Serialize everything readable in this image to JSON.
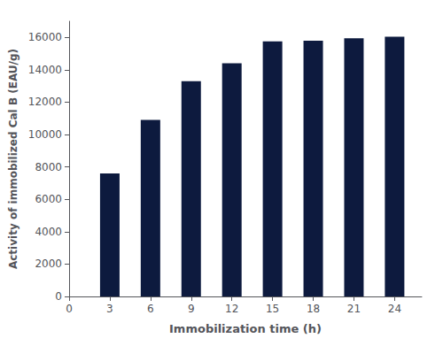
{
  "chart_data": {
    "type": "bar",
    "x": [
      3,
      6,
      9,
      12,
      15,
      18,
      21,
      24
    ],
    "values": [
      7600,
      10900,
      13300,
      14400,
      15750,
      15800,
      15950,
      16050
    ],
    "color": "#0d1a3e",
    "xlabel": "Immobilization time (h)",
    "ylabel": "Activity of immobilized Cal B (EAU/g)",
    "xlim": [
      0,
      26
    ],
    "xticks": [
      0,
      3,
      6,
      9,
      12,
      15,
      18,
      21,
      24
    ],
    "ylim": [
      0,
      17000
    ],
    "yticks": [
      0,
      2000,
      4000,
      6000,
      8000,
      10000,
      12000,
      14000,
      16000
    ],
    "grid": false
  }
}
